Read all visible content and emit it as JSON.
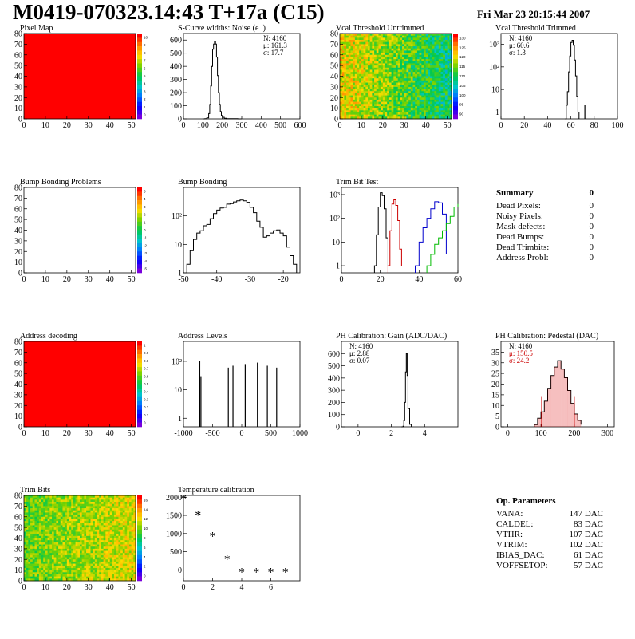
{
  "header": {
    "title": "M0419-070323.14:43 T+17a (C15)",
    "date": "Fri Mar 23 20:15:44 2007"
  },
  "chart_data": [
    {
      "id": "pixel_map",
      "type": "heatmap",
      "title": "Pixel Map",
      "xlim": [
        0,
        52
      ],
      "ylim": [
        0,
        80
      ],
      "xticks": [
        "0",
        "10",
        "20",
        "30",
        "40",
        "50"
      ],
      "yticks": [
        "0",
        "10",
        "20",
        "30",
        "40",
        "50",
        "60",
        "70",
        "80"
      ],
      "palette": "uniform_red",
      "colorbar": {
        "ticks": [
          "10",
          "9",
          "8",
          "7",
          "6",
          "5",
          "4",
          "3",
          "2",
          "1",
          "0"
        ]
      }
    },
    {
      "id": "noise",
      "type": "line",
      "title": "S-Curve widths: Noise (e⁻)",
      "xlim": [
        0,
        600
      ],
      "ylim": [
        0,
        650
      ],
      "xticks": [
        "0",
        "100",
        "200",
        "300",
        "400",
        "500",
        "600"
      ],
      "yticks": [
        "0",
        "100",
        "200",
        "300",
        "400",
        "500",
        "600"
      ],
      "stats": [
        {
          "text": "N: 4160"
        },
        {
          "text": "μ: 161.3"
        },
        {
          "text": "σ: 17.7"
        }
      ],
      "series": [
        {
          "color": "#000000",
          "x": [
            100,
            110,
            120,
            130,
            135,
            140,
            145,
            150,
            155,
            160,
            165,
            170,
            175,
            180,
            185,
            190,
            195,
            200,
            210,
            220,
            240,
            280,
            300
          ],
          "values": [
            0,
            2,
            8,
            40,
            110,
            250,
            400,
            530,
            570,
            590,
            570,
            470,
            330,
            200,
            110,
            55,
            25,
            12,
            5,
            2,
            1,
            0,
            0
          ]
        }
      ]
    },
    {
      "id": "vcal_untrimmed",
      "type": "heatmap",
      "title": "Vcal Threshold Untrimmed",
      "xlim": [
        0,
        52
      ],
      "ylim": [
        0,
        80
      ],
      "xticks": [
        "0",
        "10",
        "20",
        "30",
        "40",
        "50"
      ],
      "yticks": [
        "0",
        "10",
        "20",
        "30",
        "40",
        "50",
        "60",
        "70",
        "80"
      ],
      "palette": "gradient_yellow_to_cyan",
      "colorbar": {
        "ticks": [
          "130",
          "125",
          "120",
          "115",
          "110",
          "105",
          "100",
          "95",
          "90"
        ]
      }
    },
    {
      "id": "vcal_trimmed",
      "type": "line",
      "title": "Vcal Threshold Trimmed",
      "xlim": [
        0,
        100
      ],
      "ylim": [
        0.5,
        3000
      ],
      "log_y": true,
      "xticks": [
        "0",
        "20",
        "40",
        "60",
        "80",
        "100"
      ],
      "yticks": [
        "1",
        "10",
        "10²",
        "10³"
      ],
      "stats": [
        {
          "text": "N: 4160"
        },
        {
          "text": "μ: 60.6"
        },
        {
          "text": "σ:  1.3"
        }
      ],
      "series": [
        {
          "color": "#000000",
          "x": [
            55,
            56,
            57,
            58,
            59,
            60,
            61,
            62,
            63,
            64,
            65,
            66,
            67
          ],
          "values": [
            0.5,
            2,
            8,
            60,
            300,
            1200,
            1500,
            900,
            200,
            40,
            5,
            1,
            0.5
          ]
        }
      ],
      "spikes": [
        {
          "x": 72,
          "y": 2
        }
      ]
    },
    {
      "id": "bump_map",
      "type": "heatmap",
      "title": "Bump Bonding Problems",
      "xlim": [
        0,
        52
      ],
      "ylim": [
        0,
        80
      ],
      "xticks": [
        "0",
        "10",
        "20",
        "30",
        "40",
        "50"
      ],
      "yticks": [
        "0",
        "10",
        "20",
        "30",
        "40",
        "50",
        "60",
        "70",
        "80"
      ],
      "palette": "empty",
      "colorbar": {
        "ticks": [
          "5",
          "4",
          "3",
          "2",
          "1",
          "0",
          "-1",
          "-2",
          "-3",
          "-4",
          "-5"
        ]
      }
    },
    {
      "id": "bump_bonding",
      "type": "line",
      "title": "Bump Bonding",
      "xlim": [
        -50,
        -15
      ],
      "ylim": [
        1,
        1000
      ],
      "log_y": true,
      "xticks": [
        "-50",
        "-40",
        "-30",
        "-20"
      ],
      "yticks": [
        "1",
        "10",
        "10²"
      ],
      "series": [
        {
          "color": "#000000",
          "x": [
            -49,
            -48,
            -47,
            -46,
            -45,
            -44,
            -43,
            -42,
            -41,
            -40,
            -39,
            -38,
            -37,
            -36,
            -35,
            -34,
            -33,
            -32,
            -31,
            -30,
            -29,
            -28,
            -27,
            -26,
            -25,
            -24,
            -23,
            -22,
            -21,
            -20,
            -19,
            -18,
            -17,
            -16
          ],
          "values": [
            2,
            6,
            15,
            25,
            30,
            45,
            50,
            80,
            120,
            160,
            190,
            200,
            260,
            270,
            310,
            340,
            360,
            340,
            300,
            200,
            130,
            65,
            40,
            18,
            20,
            25,
            30,
            32,
            25,
            20,
            8,
            4,
            2,
            1
          ]
        }
      ]
    },
    {
      "id": "trim_bit_test",
      "type": "line",
      "title": "Trim Bit Test",
      "xlim": [
        0,
        60
      ],
      "ylim": [
        0.5,
        2000
      ],
      "log_y": true,
      "xticks": [
        "0",
        "20",
        "40",
        "60"
      ],
      "yticks": [
        "1",
        "10",
        "10²",
        "10³"
      ],
      "series": [
        {
          "color": "#000000",
          "x": [
            17,
            18,
            19,
            20,
            21,
            22,
            23,
            24
          ],
          "values": [
            1,
            20,
            300,
            1200,
            900,
            250,
            15,
            1
          ]
        },
        {
          "color": "#cc0000",
          "x": [
            24,
            25,
            26,
            27,
            28,
            29,
            30,
            31
          ],
          "values": [
            1,
            30,
            400,
            600,
            350,
            80,
            5,
            1
          ]
        },
        {
          "color": "#0000cc",
          "x": [
            38,
            40,
            42,
            44,
            46,
            48,
            50,
            52,
            54
          ],
          "values": [
            1,
            10,
            40,
            100,
            250,
            500,
            450,
            150,
            3
          ]
        },
        {
          "color": "#00bb00",
          "x": [
            44,
            46,
            48,
            50,
            52,
            54,
            56,
            58,
            60
          ],
          "values": [
            1,
            3,
            8,
            15,
            30,
            60,
            120,
            300,
            400
          ]
        }
      ]
    },
    {
      "id": "address_decoding",
      "type": "heatmap",
      "title": "Address decoding",
      "xlim": [
        0,
        52
      ],
      "ylim": [
        0,
        80
      ],
      "xticks": [
        "0",
        "10",
        "20",
        "30",
        "40",
        "50"
      ],
      "yticks": [
        "0",
        "10",
        "20",
        "30",
        "40",
        "50",
        "60",
        "70",
        "80"
      ],
      "palette": "uniform_red",
      "colorbar": {
        "ticks": [
          "1",
          "0.9",
          "0.8",
          "0.7",
          "0.6",
          "0.5",
          "0.4",
          "0.3",
          "0.2",
          "0.1",
          "0"
        ]
      }
    },
    {
      "id": "address_levels",
      "type": "bar",
      "title": "Address Levels",
      "xlim": [
        -1000,
        1000
      ],
      "ylim": [
        0.5,
        500
      ],
      "log_y": true,
      "xticks": [
        "-1000",
        "-500",
        "0",
        "500",
        "1000"
      ],
      "yticks": [
        "1",
        "10",
        "10²"
      ],
      "spikes": [
        {
          "x": -720,
          "y": 100
        },
        {
          "x": -700,
          "y": 30
        },
        {
          "x": -230,
          "y": 60
        },
        {
          "x": -150,
          "y": 70
        },
        {
          "x": 60,
          "y": 80
        },
        {
          "x": 270,
          "y": 90
        },
        {
          "x": 440,
          "y": 70
        },
        {
          "x": 600,
          "y": 60
        }
      ]
    },
    {
      "id": "ph_gain",
      "type": "line",
      "title": "PH Calibration: Gain (ADC/DAC)",
      "xlim": [
        -1,
        6
      ],
      "ylim": [
        0,
        700
      ],
      "xticks": [
        "0",
        "2",
        "4"
      ],
      "yticks": [
        "0",
        "100",
        "200",
        "300",
        "400",
        "500",
        "600"
      ],
      "stats": [
        {
          "text": "N: 4160"
        },
        {
          "text": "μ: 2.88"
        },
        {
          "text": "σ: 0.07"
        }
      ],
      "series": [
        {
          "color": "#000000",
          "x": [
            2.6,
            2.7,
            2.75,
            2.8,
            2.85,
            2.9,
            2.95,
            3.0,
            3.1,
            3.2
          ],
          "values": [
            0,
            5,
            50,
            200,
            450,
            600,
            420,
            150,
            20,
            0
          ]
        }
      ]
    },
    {
      "id": "ph_pedestal",
      "type": "line",
      "title": "PH Calibration: Pedestal (DAC)",
      "xlim": [
        -20,
        320
      ],
      "ylim": [
        0,
        40
      ],
      "xticks": [
        "0",
        "100",
        "200",
        "300"
      ],
      "yticks": [
        "0",
        "5",
        "10",
        "15",
        "20",
        "25",
        "30",
        "35"
      ],
      "stats": [
        {
          "text": "N: 4160",
          "color": "#000000"
        },
        {
          "text": "μ: 150.5",
          "color": "#cc0000"
        },
        {
          "text": "σ: 24.2",
          "color": "#cc0000"
        }
      ],
      "series": [
        {
          "color": "#000000",
          "x": [
            80,
            90,
            100,
            110,
            120,
            130,
            140,
            150,
            160,
            170,
            180,
            190,
            200,
            210,
            220
          ],
          "values": [
            1,
            4,
            7,
            12,
            18,
            24,
            28,
            31,
            27,
            23,
            17,
            11,
            6,
            3,
            1
          ]
        }
      ],
      "markers": [
        {
          "x": 102,
          "y": 14
        },
        {
          "x": 200,
          "y": 14
        }
      ]
    },
    {
      "id": "trim_bits",
      "type": "heatmap",
      "title": "Trim Bits",
      "xlim": [
        0,
        52
      ],
      "ylim": [
        0,
        80
      ],
      "xticks": [
        "0",
        "10",
        "20",
        "30",
        "40",
        "50"
      ],
      "yticks": [
        "0",
        "10",
        "20",
        "30",
        "40",
        "50",
        "60",
        "70",
        "80"
      ],
      "palette": "gradient_green",
      "colorbar": {
        "ticks": [
          "16",
          "14",
          "12",
          "10",
          "8",
          "6",
          "4",
          "2",
          "0"
        ]
      }
    },
    {
      "id": "temperature",
      "type": "scatter",
      "title": "Temperature calibration",
      "xlim": [
        0,
        8
      ],
      "ylim": [
        -300,
        2050
      ],
      "xticks": [
        "0",
        "2",
        "4",
        "6"
      ],
      "yticks": [
        "0",
        "500",
        "1000",
        "1500",
        "2000"
      ],
      "series": [
        {
          "color": "#000000",
          "x": [
            0,
            1,
            2,
            3,
            4,
            5,
            6,
            7
          ],
          "values": [
            1950,
            1500,
            920,
            280,
            -70,
            -70,
            -70,
            -70
          ]
        }
      ]
    }
  ],
  "summary": {
    "title": "Summary",
    "total": "0",
    "rows": [
      {
        "label": "Dead Pixels:",
        "value": "0"
      },
      {
        "label": "Noisy Pixels:",
        "value": "0"
      },
      {
        "label": "Mask defects:",
        "value": "0"
      },
      {
        "label": "Dead Bumps:",
        "value": "0"
      },
      {
        "label": "Dead Trimbits:",
        "value": "0"
      },
      {
        "label": "Address Probl:",
        "value": "0"
      }
    ]
  },
  "params": {
    "title": "Op. Parameters",
    "rows": [
      {
        "label": "VANA:",
        "value": "147 DAC"
      },
      {
        "label": "CALDEL:",
        "value": "83 DAC"
      },
      {
        "label": "VTHR:",
        "value": "107 DAC"
      },
      {
        "label": "VTRIM:",
        "value": "102 DAC"
      },
      {
        "label": "IBIAS_DAC:",
        "value": "61 DAC"
      },
      {
        "label": "VOFFSETOP:",
        "value": "57 DAC"
      }
    ]
  }
}
